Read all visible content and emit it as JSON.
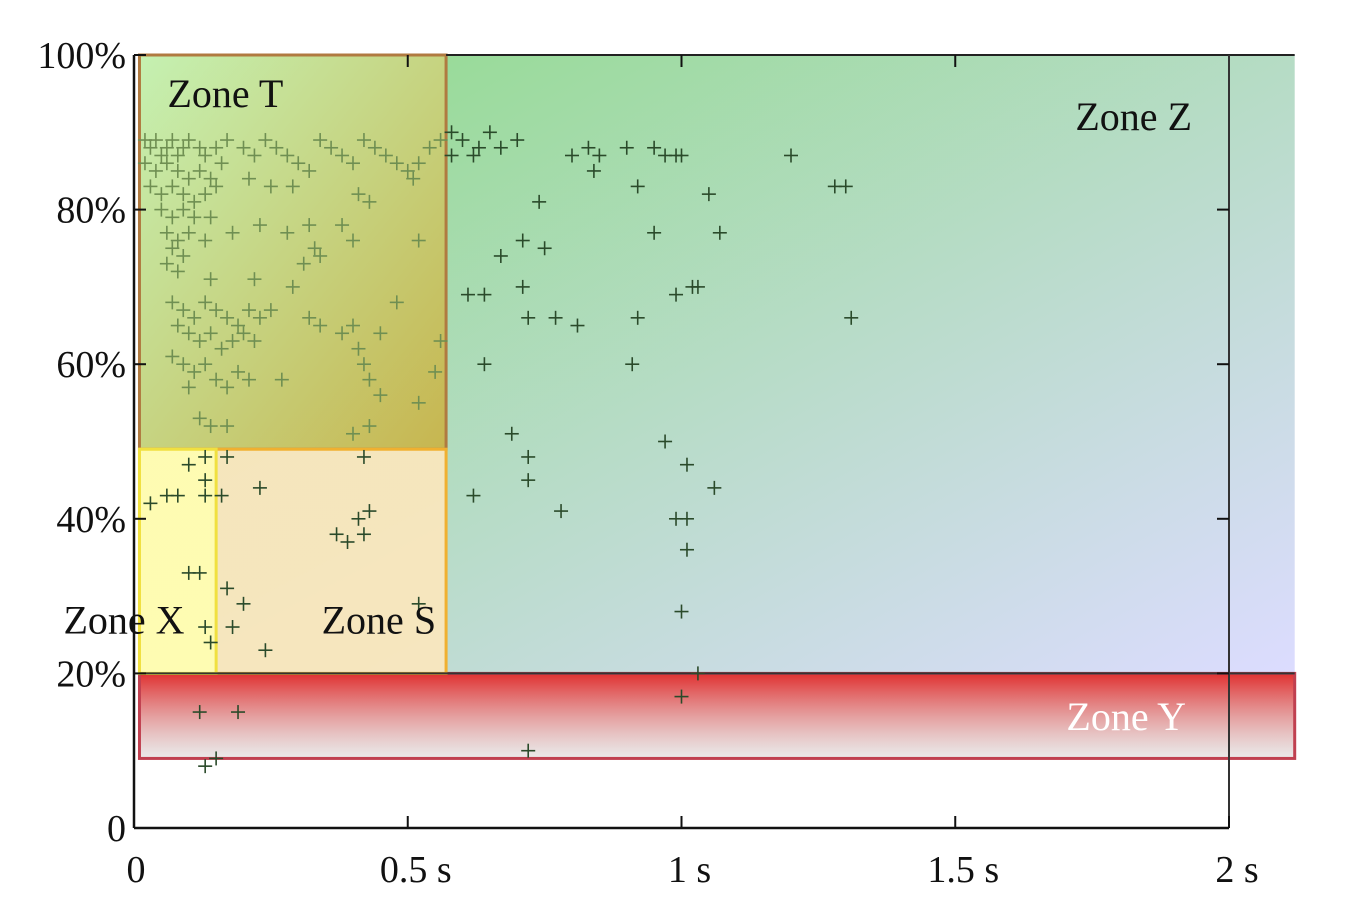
{
  "chart_data": {
    "type": "scatter",
    "title": "",
    "xlabel": "",
    "ylabel": "",
    "xlim": [
      0,
      2
    ],
    "ylim": [
      0,
      100
    ],
    "x_ticks": [
      {
        "value": 0,
        "label": "0"
      },
      {
        "value": 0.5,
        "label": "0.5  s"
      },
      {
        "value": 1,
        "label": "1 s"
      },
      {
        "value": 1.5,
        "label": "1.5 s"
      },
      {
        "value": 2,
        "label": "2 s"
      }
    ],
    "y_ticks": [
      {
        "value": 0,
        "label": "0"
      },
      {
        "value": 20,
        "label": "20%"
      },
      {
        "value": 40,
        "label": "40%"
      },
      {
        "value": 60,
        "label": "60%"
      },
      {
        "value": 80,
        "label": "80%"
      },
      {
        "value": 100,
        "label": "100%"
      }
    ],
    "grid": false,
    "zones": [
      {
        "name": "Zone Z",
        "label": "Zone Z",
        "x": [
          0.01,
          2.12
        ],
        "y": [
          20,
          100
        ],
        "color_from": "#8fdb8a",
        "color_to": "#dcdcff",
        "label_pos": "top-right"
      },
      {
        "name": "Zone T",
        "label": "Zone T",
        "x": [
          0.01,
          0.57
        ],
        "y": [
          49,
          100
        ],
        "color_from": "#c8f2b4",
        "color_to": "#c8b44a",
        "border": "#b07a40",
        "label_pos": "top-left"
      },
      {
        "name": "Zone S",
        "label": "Zone S",
        "x": [
          0.01,
          0.57
        ],
        "y": [
          20,
          49
        ],
        "color_from": "#fbe6bd",
        "color_to": "#f8e2b8",
        "border": "#f0b030",
        "label_pos": "bottom-right"
      },
      {
        "name": "Zone X",
        "label": "Zone X",
        "x": [
          0.01,
          0.15
        ],
        "y": [
          20,
          49
        ],
        "color_from": "#ffffb0",
        "color_to": "#ffff9a",
        "border": "#f0e040",
        "label_pos": "bottom-left"
      },
      {
        "name": "Zone Y",
        "label": "Zone Y",
        "x": [
          0.01,
          2.12
        ],
        "y": [
          9,
          20
        ],
        "color_from": "#e03030",
        "color_to": "#dcdcdc",
        "border": "#c04050",
        "label_pos": "right"
      }
    ],
    "points": [
      [
        0.02,
        89
      ],
      [
        0.03,
        88
      ],
      [
        0.04,
        89
      ],
      [
        0.05,
        87
      ],
      [
        0.06,
        88
      ],
      [
        0.07,
        89
      ],
      [
        0.08,
        87
      ],
      [
        0.09,
        88
      ],
      [
        0.1,
        89
      ],
      [
        0.12,
        88
      ],
      [
        0.13,
        87
      ],
      [
        0.15,
        88
      ],
      [
        0.17,
        89
      ],
      [
        0.02,
        86
      ],
      [
        0.04,
        85
      ],
      [
        0.06,
        86
      ],
      [
        0.08,
        85
      ],
      [
        0.1,
        84
      ],
      [
        0.12,
        85
      ],
      [
        0.14,
        84
      ],
      [
        0.16,
        86
      ],
      [
        0.03,
        83
      ],
      [
        0.05,
        82
      ],
      [
        0.07,
        83
      ],
      [
        0.09,
        82
      ],
      [
        0.11,
        81
      ],
      [
        0.13,
        82
      ],
      [
        0.15,
        83
      ],
      [
        0.05,
        80
      ],
      [
        0.07,
        79
      ],
      [
        0.09,
        80
      ],
      [
        0.11,
        79
      ],
      [
        0.14,
        79
      ],
      [
        0.06,
        77
      ],
      [
        0.08,
        76
      ],
      [
        0.1,
        77
      ],
      [
        0.13,
        76
      ],
      [
        0.18,
        77
      ],
      [
        0.07,
        75
      ],
      [
        0.09,
        74
      ],
      [
        0.06,
        73
      ],
      [
        0.08,
        72
      ],
      [
        0.14,
        71
      ],
      [
        0.22,
        71
      ],
      [
        0.2,
        88
      ],
      [
        0.22,
        87
      ],
      [
        0.24,
        89
      ],
      [
        0.26,
        88
      ],
      [
        0.28,
        87
      ],
      [
        0.3,
        86
      ],
      [
        0.32,
        85
      ],
      [
        0.34,
        89
      ],
      [
        0.36,
        88
      ],
      [
        0.38,
        87
      ],
      [
        0.4,
        86
      ],
      [
        0.42,
        89
      ],
      [
        0.44,
        88
      ],
      [
        0.46,
        87
      ],
      [
        0.48,
        86
      ],
      [
        0.5,
        85
      ],
      [
        0.52,
        86
      ],
      [
        0.54,
        88
      ],
      [
        0.56,
        89
      ],
      [
        0.21,
        84
      ],
      [
        0.25,
        83
      ],
      [
        0.29,
        83
      ],
      [
        0.41,
        82
      ],
      [
        0.43,
        81
      ],
      [
        0.51,
        84
      ],
      [
        0.23,
        78
      ],
      [
        0.28,
        77
      ],
      [
        0.32,
        78
      ],
      [
        0.38,
        78
      ],
      [
        0.4,
        76
      ],
      [
        0.52,
        76
      ],
      [
        0.33,
        75
      ],
      [
        0.34,
        74
      ],
      [
        0.31,
        73
      ],
      [
        0.29,
        70
      ],
      [
        0.07,
        68
      ],
      [
        0.09,
        67
      ],
      [
        0.11,
        66
      ],
      [
        0.13,
        68
      ],
      [
        0.15,
        67
      ],
      [
        0.17,
        66
      ],
      [
        0.19,
        65
      ],
      [
        0.21,
        67
      ],
      [
        0.23,
        66
      ],
      [
        0.25,
        67
      ],
      [
        0.08,
        65
      ],
      [
        0.1,
        64
      ],
      [
        0.12,
        63
      ],
      [
        0.14,
        64
      ],
      [
        0.16,
        62
      ],
      [
        0.18,
        63
      ],
      [
        0.2,
        64
      ],
      [
        0.22,
        63
      ],
      [
        0.32,
        66
      ],
      [
        0.34,
        65
      ],
      [
        0.38,
        64
      ],
      [
        0.4,
        65
      ],
      [
        0.45,
        64
      ],
      [
        0.48,
        68
      ],
      [
        0.07,
        61
      ],
      [
        0.09,
        60
      ],
      [
        0.11,
        59
      ],
      [
        0.13,
        60
      ],
      [
        0.15,
        58
      ],
      [
        0.17,
        57
      ],
      [
        0.19,
        59
      ],
      [
        0.21,
        58
      ],
      [
        0.27,
        58
      ],
      [
        0.41,
        62
      ],
      [
        0.42,
        60
      ],
      [
        0.43,
        58
      ],
      [
        0.45,
        56
      ],
      [
        0.52,
        55
      ],
      [
        0.55,
        59
      ],
      [
        0.56,
        63
      ],
      [
        0.1,
        57
      ],
      [
        0.12,
        53
      ],
      [
        0.14,
        52
      ],
      [
        0.17,
        52
      ],
      [
        0.4,
        51
      ],
      [
        0.43,
        52
      ],
      [
        0.58,
        90
      ],
      [
        0.6,
        89
      ],
      [
        0.63,
        88
      ],
      [
        0.65,
        90
      ],
      [
        0.67,
        88
      ],
      [
        0.7,
        89
      ],
      [
        0.58,
        87
      ],
      [
        0.62,
        87
      ],
      [
        0.8,
        87
      ],
      [
        0.83,
        88
      ],
      [
        0.85,
        87
      ],
      [
        0.9,
        88
      ],
      [
        0.95,
        88
      ],
      [
        0.97,
        87
      ],
      [
        0.99,
        87
      ],
      [
        1.0,
        87
      ],
      [
        1.2,
        87
      ],
      [
        0.84,
        85
      ],
      [
        0.92,
        83
      ],
      [
        1.05,
        82
      ],
      [
        1.28,
        83
      ],
      [
        1.3,
        83
      ],
      [
        0.74,
        81
      ],
      [
        0.95,
        77
      ],
      [
        1.07,
        77
      ],
      [
        0.71,
        76
      ],
      [
        0.75,
        75
      ],
      [
        0.67,
        74
      ],
      [
        0.61,
        69
      ],
      [
        0.64,
        69
      ],
      [
        0.71,
        70
      ],
      [
        0.99,
        69
      ],
      [
        1.02,
        70
      ],
      [
        1.03,
        70
      ],
      [
        0.72,
        66
      ],
      [
        0.77,
        66
      ],
      [
        0.81,
        65
      ],
      [
        0.92,
        66
      ],
      [
        1.31,
        66
      ],
      [
        0.64,
        60
      ],
      [
        0.91,
        60
      ],
      [
        0.69,
        51
      ],
      [
        0.97,
        50
      ],
      [
        0.72,
        48
      ],
      [
        1.01,
        47
      ],
      [
        0.62,
        43
      ],
      [
        0.72,
        45
      ],
      [
        1.06,
        44
      ],
      [
        0.78,
        41
      ],
      [
        0.99,
        40
      ],
      [
        1.01,
        40
      ],
      [
        1.01,
        36
      ],
      [
        1.0,
        28
      ],
      [
        1.03,
        20
      ],
      [
        1.0,
        17
      ],
      [
        0.72,
        10
      ],
      [
        0.13,
        48
      ],
      [
        0.17,
        48
      ],
      [
        0.1,
        47
      ],
      [
        0.13,
        45
      ],
      [
        0.03,
        42
      ],
      [
        0.06,
        43
      ],
      [
        0.08,
        43
      ],
      [
        0.13,
        43
      ],
      [
        0.16,
        43
      ],
      [
        0.23,
        44
      ],
      [
        0.42,
        48
      ],
      [
        0.43,
        41
      ],
      [
        0.41,
        40
      ],
      [
        0.37,
        38
      ],
      [
        0.39,
        37
      ],
      [
        0.42,
        38
      ],
      [
        0.1,
        33
      ],
      [
        0.12,
        33
      ],
      [
        0.17,
        31
      ],
      [
        0.2,
        29
      ],
      [
        0.52,
        29
      ],
      [
        0.13,
        26
      ],
      [
        0.18,
        26
      ],
      [
        0.14,
        24
      ],
      [
        0.24,
        23
      ],
      [
        0.12,
        15
      ],
      [
        0.19,
        15
      ],
      [
        0.13,
        8
      ],
      [
        0.15,
        9
      ]
    ]
  }
}
